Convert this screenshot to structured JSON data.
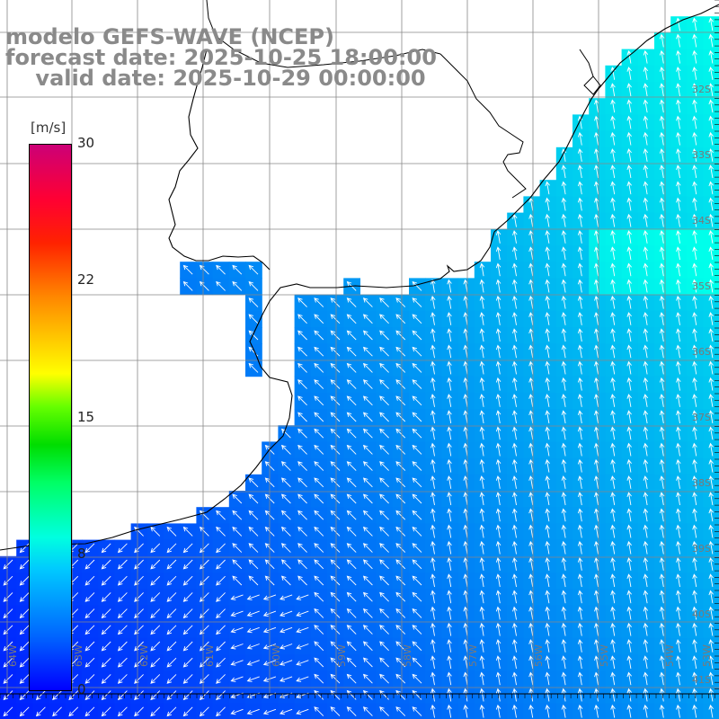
{
  "title": {
    "line1": "modelo GEFS-WAVE (NCEP)",
    "line2": "forecast date: 2025-10-25 18:00:00",
    "line3": "    valid date: 2025-10-29 00:00:00"
  },
  "colorbar": {
    "unit": "[m/s]",
    "ticks": [
      {
        "label": "30",
        "value": 30
      },
      {
        "label": "22",
        "value": 22
      },
      {
        "label": "15",
        "value": 15
      },
      {
        "label": "8",
        "value": 8
      },
      {
        "label": "0",
        "value": 0
      }
    ],
    "min": 0,
    "max": 30
  },
  "lat_labels": [
    "32S",
    "33S",
    "34S",
    "35S",
    "36S",
    "37S",
    "38S",
    "39S",
    "40S",
    "41S"
  ],
  "lon_labels": [
    "64W",
    "63W",
    "62W",
    "61W",
    "60W",
    "59W",
    "58W",
    "57W",
    "56W",
    "55W",
    "54W",
    "53W"
  ],
  "colors": {
    "land": "#ffffff",
    "grid": "#888888",
    "coast": "#000000",
    "arrows": "#ffffff",
    "title": "#8a8a8a"
  },
  "field": {
    "variable": "wind speed",
    "units": "m/s",
    "range_shown": [
      3,
      9
    ]
  }
}
